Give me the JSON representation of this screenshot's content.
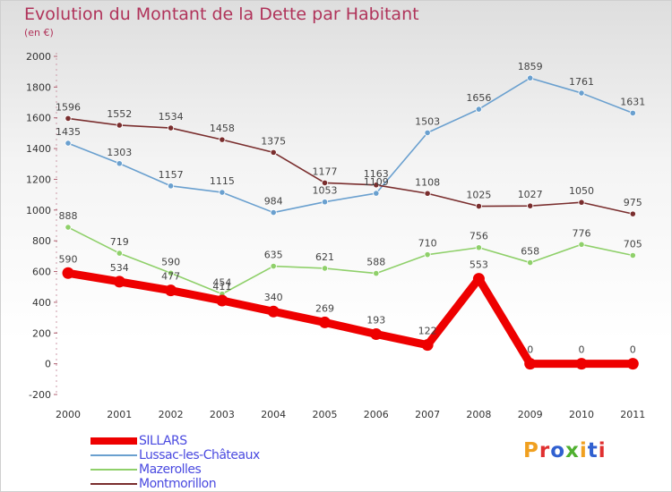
{
  "title": "Evolution du Montant de la Dette par Habitant",
  "unit": "(en €)",
  "logo": {
    "text": "Proxiti",
    "letter_colors": [
      "#f0a020",
      "#e03030",
      "#3060d0",
      "#50b030",
      "#f0a020",
      "#3060d0",
      "#e03030"
    ]
  },
  "chart_data": {
    "type": "line",
    "title": "Evolution du Montant de la Dette par Habitant",
    "ylabel": "(en €)",
    "xlabel": "",
    "ylim": [
      -200,
      2000
    ],
    "yticks": [
      -200,
      0,
      200,
      400,
      600,
      800,
      1000,
      1200,
      1400,
      1600,
      1800,
      2000
    ],
    "grid": false,
    "legend": "bottom-left",
    "x": [
      "2000",
      "2001",
      "2002",
      "2003",
      "2004",
      "2005",
      "2006",
      "2007",
      "2008",
      "2009",
      "2010",
      "2011"
    ],
    "series": [
      {
        "name": "Lussac-les-Châteaux",
        "color": "#6aa0cf",
        "values": [
          1435,
          1303,
          1157,
          1115,
          984,
          1053,
          1109,
          1503,
          1656,
          1859,
          1761,
          1631
        ],
        "labels": [
          "1435",
          "1303",
          "1157",
          "1115",
          "984",
          "1053",
          "1109",
          "1503",
          "1656",
          "1859",
          "1761",
          "1631"
        ]
      },
      {
        "name": "Mazerolles",
        "color": "#8fd06a",
        "values": [
          888,
          719,
          590,
          454,
          635,
          621,
          588,
          710,
          756,
          658,
          776,
          705
        ],
        "labels": [
          "888",
          "719",
          "590",
          "454",
          "635",
          "621",
          "588",
          "710",
          "756",
          "658",
          "776",
          "705"
        ]
      },
      {
        "name": "Montmorillon",
        "color": "#7a2e2e",
        "values": [
          1596,
          1552,
          1534,
          1458,
          1375,
          1177,
          1163,
          1108,
          1025,
          1027,
          1050,
          975
        ],
        "labels": [
          "1596",
          "1552",
          "1534",
          "1458",
          "1375",
          "1177",
          "1163",
          "1108",
          "1025",
          "1027",
          "1050",
          "975"
        ]
      },
      {
        "name": "SILLARS",
        "color": "#ee0000",
        "values": [
          590,
          534,
          477,
          411,
          340,
          269,
          193,
          122,
          553,
          0,
          0,
          0
        ],
        "labels": [
          "590",
          "534",
          "477",
          "411",
          "340",
          "269",
          "193",
          "122",
          "553",
          "0",
          "0",
          "0"
        ]
      }
    ],
    "legend_order": [
      "SILLARS",
      "Lussac-les-Châteaux",
      "Mazerolles",
      "Montmorillon"
    ]
  }
}
